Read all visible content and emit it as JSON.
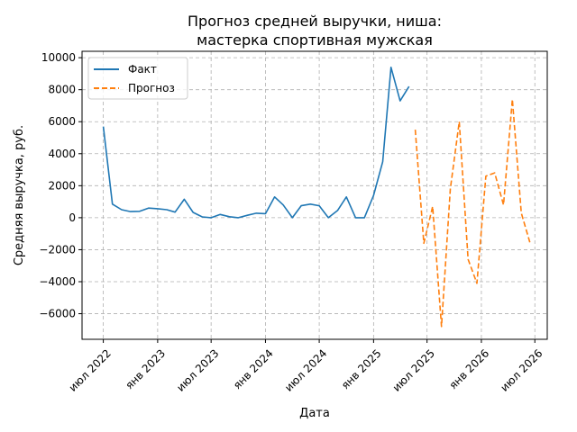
{
  "chart_data": {
    "type": "line",
    "title_lines": [
      "Прогноз средней выручки, ниша:",
      "мастерка спортивная мужская"
    ],
    "xlabel": "Дата",
    "ylabel": "Средняя выручка, руб.",
    "x_start": "2022-07-01",
    "x_end": "2026-07-01",
    "xlim": [
      "2022-04-20",
      "2026-08-12"
    ],
    "ylim": [
      -7600,
      10400
    ],
    "yticks": [
      -6000,
      -4000,
      -2000,
      0,
      2000,
      4000,
      6000,
      8000,
      10000
    ],
    "ytick_labels": [
      "−6000",
      "−4000",
      "−2000",
      "0",
      "2000",
      "4000",
      "6000",
      "8000",
      "10000"
    ],
    "xticks": [
      "2022-07-01",
      "2023-01-01",
      "2023-07-01",
      "2024-01-01",
      "2024-07-01",
      "2025-01-01",
      "2025-07-01",
      "2026-01-01",
      "2026-07-01"
    ],
    "xtick_labels": [
      "июл 2022",
      "янв 2023",
      "июл 2023",
      "янв 2024",
      "июл 2024",
      "янв 2025",
      "июл 2025",
      "янв 2026",
      "июл 2026"
    ],
    "grid": true,
    "legend_position": "top-left",
    "series": [
      {
        "name": "Факт",
        "color": "#1f77b4",
        "style": "solid",
        "x": [
          "2022-07-01",
          "2022-08-01",
          "2022-09-01",
          "2022-10-01",
          "2022-11-01",
          "2022-12-01",
          "2023-01-01",
          "2023-02-01",
          "2023-03-01",
          "2023-04-01",
          "2023-05-01",
          "2023-06-01",
          "2023-07-01",
          "2023-08-01",
          "2023-09-01",
          "2023-10-01",
          "2023-11-01",
          "2023-12-01",
          "2024-01-01",
          "2024-02-01",
          "2024-03-01",
          "2024-04-01",
          "2024-05-01",
          "2024-06-01",
          "2024-07-01",
          "2024-08-01",
          "2024-09-01",
          "2024-10-01",
          "2024-11-01",
          "2024-12-01",
          "2025-01-01",
          "2025-02-01",
          "2025-03-01",
          "2025-04-01",
          "2025-05-01"
        ],
        "y": [
          5700,
          850,
          500,
          380,
          400,
          600,
          560,
          500,
          350,
          1150,
          330,
          50,
          0,
          200,
          60,
          0,
          150,
          280,
          250,
          1300,
          800,
          0,
          750,
          850,
          750,
          0,
          450,
          1300,
          0,
          0,
          1400,
          3500,
          9400,
          7300,
          8200
        ]
      },
      {
        "name": "Прогноз",
        "color": "#ff7f0e",
        "style": "dashed",
        "x": [
          "2025-05-22",
          "2025-06-20",
          "2025-07-20",
          "2025-08-19",
          "2025-09-18",
          "2025-10-18",
          "2025-11-17",
          "2025-12-17",
          "2026-01-16",
          "2026-02-15",
          "2026-03-17",
          "2026-04-16",
          "2026-05-16",
          "2026-06-15"
        ],
        "y": [
          5500,
          -1600,
          700,
          -6800,
          1800,
          6000,
          -2600,
          -4100,
          2600,
          2800,
          800,
          7400,
          300,
          -1600
        ]
      }
    ]
  }
}
